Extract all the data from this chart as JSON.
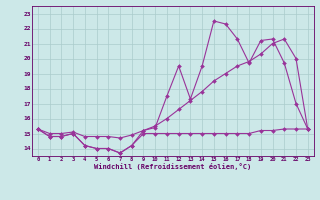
{
  "xlabel": "Windchill (Refroidissement éolien,°C)",
  "bg_color": "#cce8e8",
  "line_color": "#993399",
  "grid_color": "#aacccc",
  "axis_color": "#660066",
  "text_color": "#660066",
  "x_hours": [
    0,
    1,
    2,
    3,
    4,
    5,
    6,
    7,
    8,
    9,
    10,
    11,
    12,
    13,
    14,
    15,
    16,
    17,
    18,
    19,
    20,
    21,
    22,
    23
  ],
  "series_A": [
    15.3,
    14.8,
    14.8,
    15.0,
    14.2,
    14.0,
    14.0,
    13.7,
    14.2,
    15.2,
    15.4,
    17.5,
    19.5,
    17.3,
    19.5,
    22.5,
    22.3,
    21.3,
    19.7,
    21.2,
    21.3,
    19.7,
    17.0,
    15.3
  ],
  "series_B": [
    15.3,
    14.8,
    14.8,
    15.0,
    14.2,
    14.0,
    14.0,
    13.7,
    14.2,
    15.0,
    15.0,
    15.0,
    15.0,
    15.0,
    15.0,
    15.0,
    15.0,
    15.0,
    15.0,
    15.2,
    15.2,
    15.3,
    15.3,
    15.3
  ],
  "series_C": [
    15.3,
    15.0,
    15.0,
    15.1,
    14.8,
    14.8,
    14.8,
    14.7,
    14.9,
    15.2,
    15.5,
    16.0,
    16.6,
    17.2,
    17.8,
    18.5,
    19.0,
    19.5,
    19.8,
    20.3,
    21.0,
    21.3,
    20.0,
    15.3
  ],
  "ylim": [
    13.5,
    23.5
  ],
  "yticks": [
    14,
    15,
    16,
    17,
    18,
    19,
    20,
    21,
    22,
    23
  ],
  "xticks": [
    0,
    1,
    2,
    3,
    4,
    5,
    6,
    7,
    8,
    9,
    10,
    11,
    12,
    13,
    14,
    15,
    16,
    17,
    18,
    19,
    20,
    21,
    22,
    23
  ]
}
